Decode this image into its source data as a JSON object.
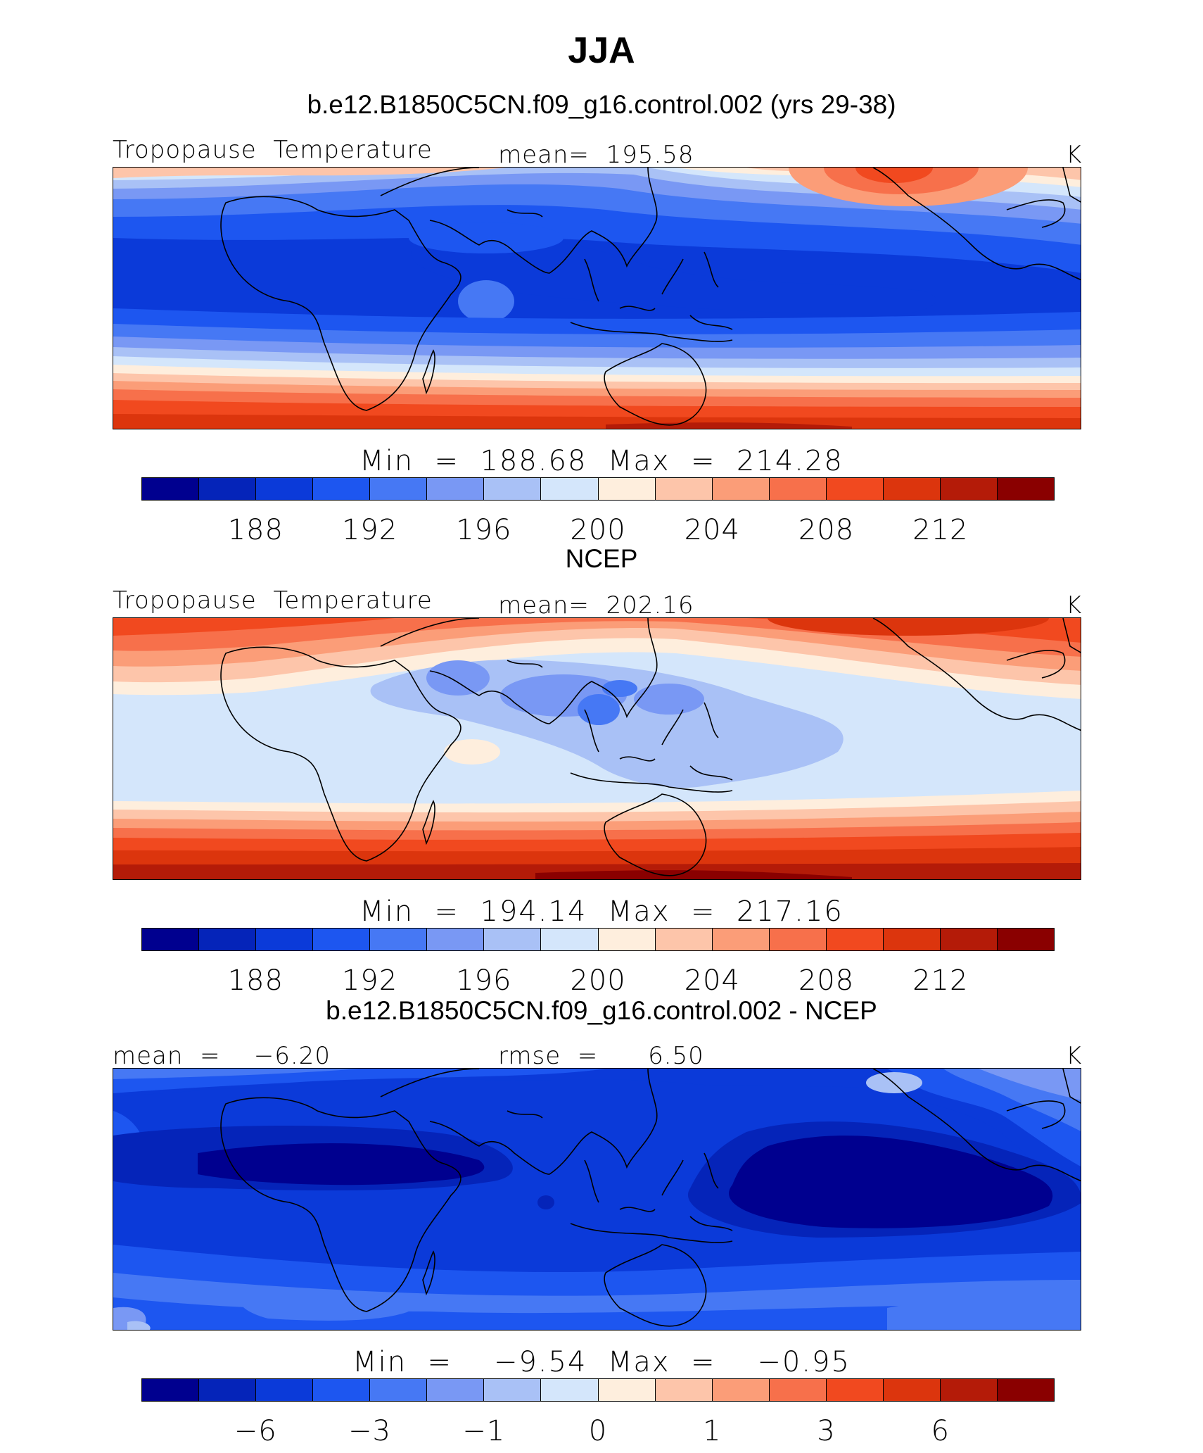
{
  "title": "JJA",
  "colorbar_colors": [
    "#00008f",
    "#0524b9",
    "#0b3ad9",
    "#1d56f0",
    "#4678f4",
    "#7998f4",
    "#a9c1f6",
    "#d4e6fb",
    "#feeedd",
    "#fdc5aa",
    "#fb9d78",
    "#f7704b",
    "#f1491f",
    "#dc350d",
    "#b41b08",
    "#8a0000"
  ],
  "panels": [
    {
      "id": "model",
      "case_title": "b.e12.B1850C5CN.f09_g16.control.002 (yrs 29-38)",
      "left_label": "Tropopause  Temperature",
      "center_label": "mean=  195.58",
      "units": "K",
      "minmax": "Min  =  188.68  Max  =  214.28",
      "tick_labels": [
        "188",
        "192",
        "196",
        "200",
        "204",
        "208",
        "212"
      ]
    },
    {
      "id": "obs",
      "case_title": "NCEP",
      "left_label": "Tropopause  Temperature",
      "center_label": "mean=  202.16",
      "units": "K",
      "minmax": "Min  =  194.14  Max  =  217.16",
      "tick_labels": [
        "188",
        "192",
        "196",
        "200",
        "204",
        "208",
        "212"
      ]
    },
    {
      "id": "diff",
      "case_title": "b.e12.B1850C5CN.f09_g16.control.002 - NCEP",
      "left_label": "mean  =    −6.20",
      "center_label": "rmse  =      6.50",
      "units": "K",
      "minmax": "Min  =    −9.54  Max  =    −0.95",
      "tick_labels": [
        "−6",
        "−3",
        "−1",
        "0",
        "1",
        "3",
        "6"
      ]
    }
  ]
}
